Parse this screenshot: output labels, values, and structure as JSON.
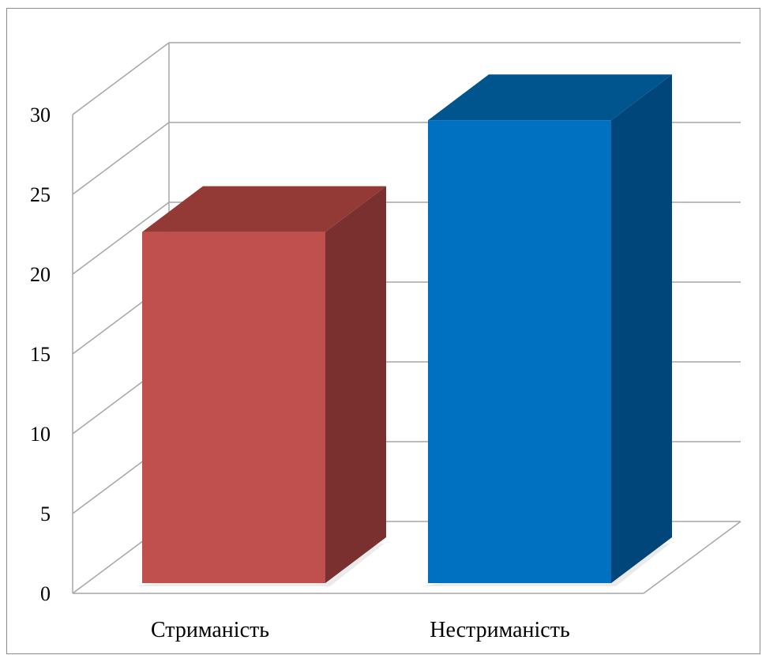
{
  "chart_data": {
    "type": "bar",
    "style": "3d-column",
    "categories": [
      "Стриманість",
      "Нестриманість"
    ],
    "series": [
      {
        "values": [
          22,
          29
        ]
      }
    ],
    "bar_colors": [
      {
        "front": "#c0504d",
        "side": "#7a302e",
        "top": "#933a37"
      },
      {
        "front": "#0070c0",
        "side": "#00467a",
        "top": "#00558f"
      }
    ],
    "y_ticks": [
      "0",
      "5",
      "10",
      "15",
      "20",
      "25",
      "30"
    ],
    "ylim": [
      0,
      30
    ],
    "grid": true,
    "legend": "none",
    "title": "",
    "xlabel": "",
    "ylabel": ""
  },
  "colors": {
    "gridline": "#a6a6a6",
    "frame_border": "#8c8c8c",
    "background": "#ffffff"
  }
}
